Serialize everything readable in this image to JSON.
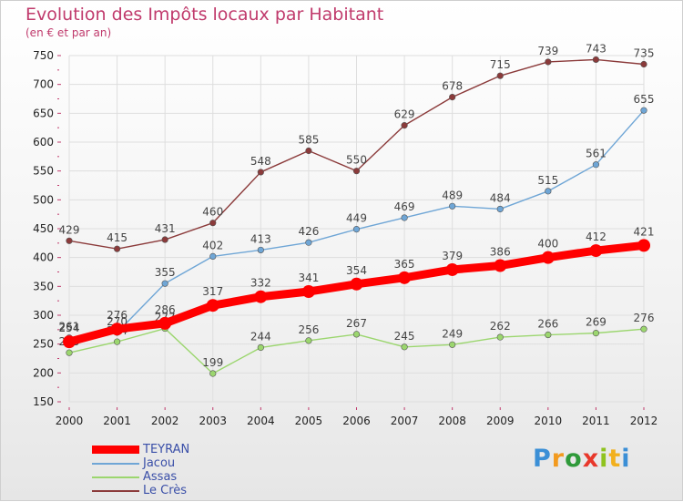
{
  "chart_data": {
    "type": "line",
    "title": "Evolution des Impôts locaux par Habitant",
    "subtitle": "(en € et par an)",
    "xlabel": "",
    "ylabel": "",
    "x": [
      "2000",
      "2001",
      "2002",
      "2003",
      "2004",
      "2005",
      "2006",
      "2007",
      "2008",
      "2009",
      "2010",
      "2011",
      "2012"
    ],
    "ylim": [
      150,
      750
    ],
    "yticks": [
      "150",
      "200",
      "250",
      "300",
      "350",
      "400",
      "450",
      "500",
      "550",
      "600",
      "650",
      "700",
      "750"
    ],
    "grid": "horizontal",
    "legend_position": "bottom-left",
    "series": [
      {
        "name": "TEYRAN",
        "color": "#ff0000",
        "values": [
          254,
          276,
          286,
          317,
          332,
          341,
          354,
          365,
          379,
          386,
          400,
          412,
          421
        ],
        "labels": [
          "254",
          "276",
          "286",
          "317",
          "332",
          "341",
          "354",
          "365",
          "379",
          "386",
          "400",
          "412",
          "421"
        ]
      },
      {
        "name": "Jacou",
        "color": "#6fa6d6",
        "values": [
          261,
          270,
          355,
          402,
          413,
          426,
          449,
          469,
          489,
          484,
          515,
          561,
          655
        ],
        "labels": [
          "261",
          "270",
          "355",
          "402",
          "413",
          "426",
          "449",
          "469",
          "489",
          "484",
          "515",
          "561",
          "655"
        ]
      },
      {
        "name": "Assas",
        "color": "#9bd66e",
        "values": [
          235,
          254,
          277,
          199,
          244,
          256,
          267,
          245,
          249,
          262,
          266,
          269,
          276
        ],
        "labels": [
          "235",
          "254",
          "277",
          "199",
          "244",
          "256",
          "267",
          "245",
          "249",
          "262",
          "266",
          "269",
          "276"
        ]
      },
      {
        "name": "Le Crès",
        "color": "#8b3a3a",
        "values": [
          429,
          415,
          431,
          460,
          548,
          585,
          550,
          629,
          678,
          715,
          739,
          743,
          735
        ],
        "labels": [
          "429",
          "415",
          "431",
          "460",
          "548",
          "585",
          "550",
          "629",
          "678",
          "715",
          "739",
          "743",
          "735"
        ]
      }
    ]
  },
  "brand": {
    "letters": [
      "P",
      "r",
      "o",
      "x",
      "i",
      "t",
      "i"
    ],
    "colors": [
      "#3b8fd6",
      "#f29a1f",
      "#2f9a3a",
      "#e8382b",
      "#8fc31f",
      "#f2b01e",
      "#3b8fd6"
    ]
  }
}
